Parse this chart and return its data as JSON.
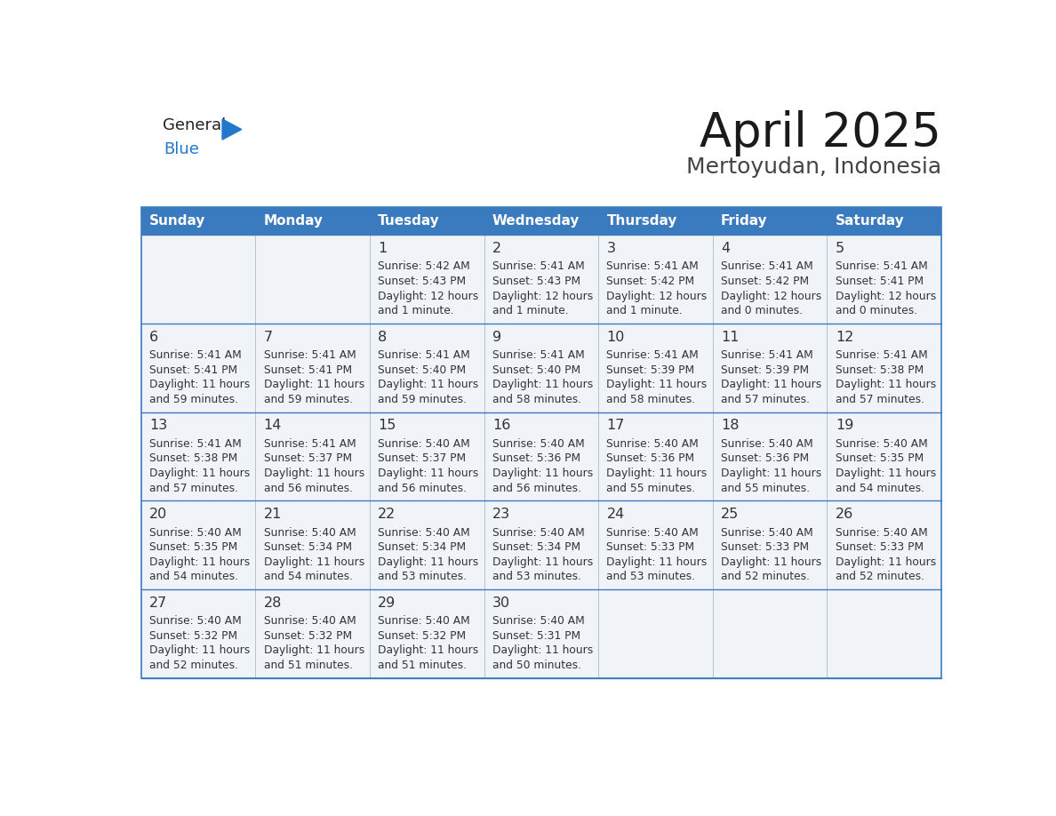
{
  "title": "April 2025",
  "subtitle": "Mertoyudan, Indonesia",
  "days_of_week": [
    "Sunday",
    "Monday",
    "Tuesday",
    "Wednesday",
    "Thursday",
    "Friday",
    "Saturday"
  ],
  "header_bg": "#3a7bbf",
  "header_text": "#ffffff",
  "row_bg": "#f0f4f8",
  "border_color": "#3a7bbf",
  "day_number_color": "#333333",
  "text_color": "#333333",
  "logo_general_color": "#222222",
  "logo_blue_color": "#2277cc",
  "calendar_data": [
    [
      null,
      null,
      {
        "day": 1,
        "sunrise": "5:42 AM",
        "sunset": "5:43 PM",
        "daylight": "12 hours",
        "daylight2": "and 1 minute."
      },
      {
        "day": 2,
        "sunrise": "5:41 AM",
        "sunset": "5:43 PM",
        "daylight": "12 hours",
        "daylight2": "and 1 minute."
      },
      {
        "day": 3,
        "sunrise": "5:41 AM",
        "sunset": "5:42 PM",
        "daylight": "12 hours",
        "daylight2": "and 1 minute."
      },
      {
        "day": 4,
        "sunrise": "5:41 AM",
        "sunset": "5:42 PM",
        "daylight": "12 hours",
        "daylight2": "and 0 minutes."
      },
      {
        "day": 5,
        "sunrise": "5:41 AM",
        "sunset": "5:41 PM",
        "daylight": "12 hours",
        "daylight2": "and 0 minutes."
      }
    ],
    [
      {
        "day": 6,
        "sunrise": "5:41 AM",
        "sunset": "5:41 PM",
        "daylight": "11 hours",
        "daylight2": "and 59 minutes."
      },
      {
        "day": 7,
        "sunrise": "5:41 AM",
        "sunset": "5:41 PM",
        "daylight": "11 hours",
        "daylight2": "and 59 minutes."
      },
      {
        "day": 8,
        "sunrise": "5:41 AM",
        "sunset": "5:40 PM",
        "daylight": "11 hours",
        "daylight2": "and 59 minutes."
      },
      {
        "day": 9,
        "sunrise": "5:41 AM",
        "sunset": "5:40 PM",
        "daylight": "11 hours",
        "daylight2": "and 58 minutes."
      },
      {
        "day": 10,
        "sunrise": "5:41 AM",
        "sunset": "5:39 PM",
        "daylight": "11 hours",
        "daylight2": "and 58 minutes."
      },
      {
        "day": 11,
        "sunrise": "5:41 AM",
        "sunset": "5:39 PM",
        "daylight": "11 hours",
        "daylight2": "and 57 minutes."
      },
      {
        "day": 12,
        "sunrise": "5:41 AM",
        "sunset": "5:38 PM",
        "daylight": "11 hours",
        "daylight2": "and 57 minutes."
      }
    ],
    [
      {
        "day": 13,
        "sunrise": "5:41 AM",
        "sunset": "5:38 PM",
        "daylight": "11 hours",
        "daylight2": "and 57 minutes."
      },
      {
        "day": 14,
        "sunrise": "5:41 AM",
        "sunset": "5:37 PM",
        "daylight": "11 hours",
        "daylight2": "and 56 minutes."
      },
      {
        "day": 15,
        "sunrise": "5:40 AM",
        "sunset": "5:37 PM",
        "daylight": "11 hours",
        "daylight2": "and 56 minutes."
      },
      {
        "day": 16,
        "sunrise": "5:40 AM",
        "sunset": "5:36 PM",
        "daylight": "11 hours",
        "daylight2": "and 56 minutes."
      },
      {
        "day": 17,
        "sunrise": "5:40 AM",
        "sunset": "5:36 PM",
        "daylight": "11 hours",
        "daylight2": "and 55 minutes."
      },
      {
        "day": 18,
        "sunrise": "5:40 AM",
        "sunset": "5:36 PM",
        "daylight": "11 hours",
        "daylight2": "and 55 minutes."
      },
      {
        "day": 19,
        "sunrise": "5:40 AM",
        "sunset": "5:35 PM",
        "daylight": "11 hours",
        "daylight2": "and 54 minutes."
      }
    ],
    [
      {
        "day": 20,
        "sunrise": "5:40 AM",
        "sunset": "5:35 PM",
        "daylight": "11 hours",
        "daylight2": "and 54 minutes."
      },
      {
        "day": 21,
        "sunrise": "5:40 AM",
        "sunset": "5:34 PM",
        "daylight": "11 hours",
        "daylight2": "and 54 minutes."
      },
      {
        "day": 22,
        "sunrise": "5:40 AM",
        "sunset": "5:34 PM",
        "daylight": "11 hours",
        "daylight2": "and 53 minutes."
      },
      {
        "day": 23,
        "sunrise": "5:40 AM",
        "sunset": "5:34 PM",
        "daylight": "11 hours",
        "daylight2": "and 53 minutes."
      },
      {
        "day": 24,
        "sunrise": "5:40 AM",
        "sunset": "5:33 PM",
        "daylight": "11 hours",
        "daylight2": "and 53 minutes."
      },
      {
        "day": 25,
        "sunrise": "5:40 AM",
        "sunset": "5:33 PM",
        "daylight": "11 hours",
        "daylight2": "and 52 minutes."
      },
      {
        "day": 26,
        "sunrise": "5:40 AM",
        "sunset": "5:33 PM",
        "daylight": "11 hours",
        "daylight2": "and 52 minutes."
      }
    ],
    [
      {
        "day": 27,
        "sunrise": "5:40 AM",
        "sunset": "5:32 PM",
        "daylight": "11 hours",
        "daylight2": "and 52 minutes."
      },
      {
        "day": 28,
        "sunrise": "5:40 AM",
        "sunset": "5:32 PM",
        "daylight": "11 hours",
        "daylight2": "and 51 minutes."
      },
      {
        "day": 29,
        "sunrise": "5:40 AM",
        "sunset": "5:32 PM",
        "daylight": "11 hours",
        "daylight2": "and 51 minutes."
      },
      {
        "day": 30,
        "sunrise": "5:40 AM",
        "sunset": "5:31 PM",
        "daylight": "11 hours",
        "daylight2": "and 50 minutes."
      },
      null,
      null,
      null
    ]
  ]
}
